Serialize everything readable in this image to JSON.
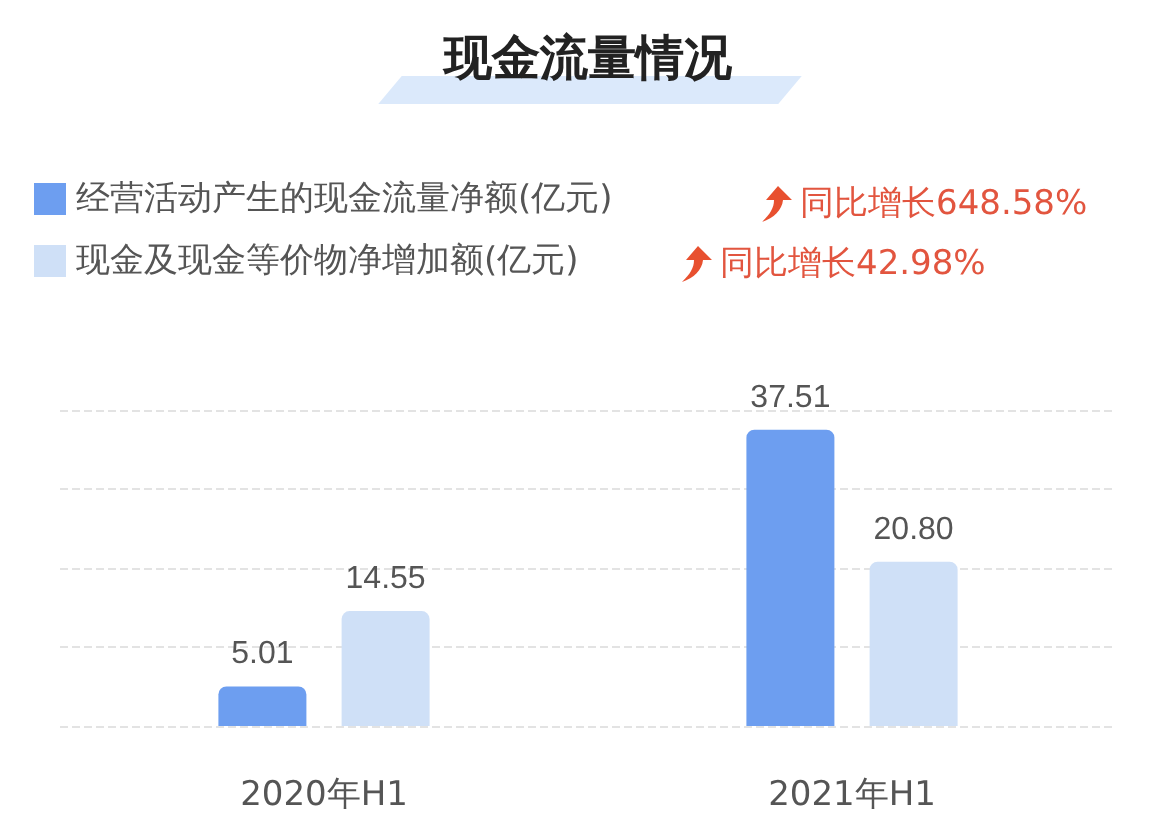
{
  "chart_data": {
    "type": "bar",
    "title": "现金流量情况",
    "categories": [
      "2020年H1",
      "2021年H1"
    ],
    "series": [
      {
        "name": "经营活动产生的现金流量净额(亿元)",
        "color": "#6d9ef0",
        "values": [
          5.01,
          37.51
        ]
      },
      {
        "name": "现金及现金等价物净增加额(亿元)",
        "color": "#cfe0f7",
        "values": [
          14.55,
          20.8
        ],
        "value_labels": [
          "14.55",
          "20.80"
        ]
      }
    ],
    "ylim": [
      0,
      40
    ],
    "yticks": [
      {
        "value": 0,
        "label": null
      },
      {
        "value": 10,
        "label": null
      },
      {
        "value": 20,
        "label": null
      },
      {
        "value": 30,
        "label": null
      },
      {
        "value": 40,
        "label": null
      }
    ],
    "grid": "y",
    "legend": "top left",
    "data_labels": true,
    "annotations": [
      "同比增长648.58%",
      "同比增长42.98%"
    ]
  }
}
